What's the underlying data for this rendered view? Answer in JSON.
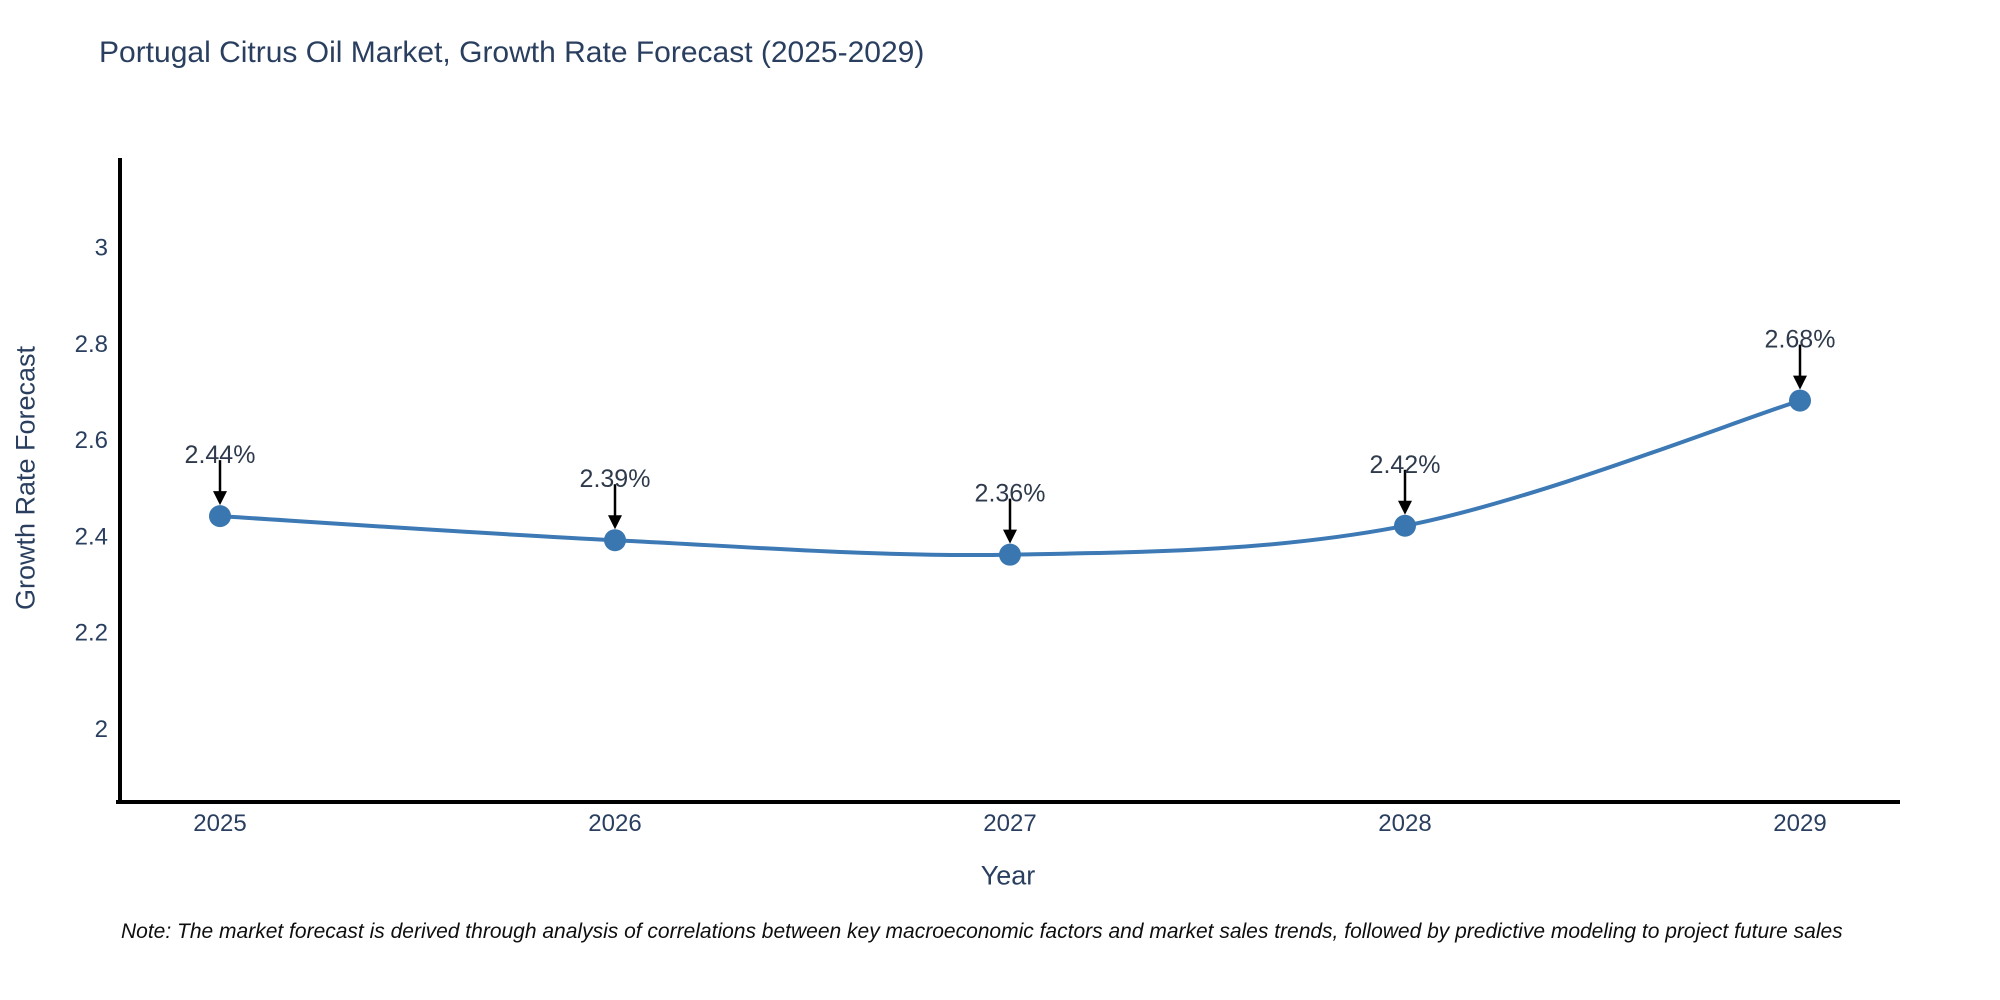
{
  "chart_data": {
    "type": "line",
    "title": "Portugal Citrus Oil Market, Growth Rate Forecast (2025-2029)",
    "xlabel": "Year",
    "ylabel": "Growth Rate Forecast",
    "categories": [
      "2025",
      "2026",
      "2027",
      "2028",
      "2029"
    ],
    "series": [
      {
        "name": "Growth Rate Forecast",
        "values": [
          2.44,
          2.39,
          2.36,
          2.42,
          2.68
        ],
        "point_labels": [
          "2.44%",
          "2.39%",
          "2.36%",
          "2.42%",
          "2.68%"
        ]
      }
    ],
    "yticks": [
      {
        "label": "3",
        "value": 3.0
      },
      {
        "label": "2.8",
        "value": 2.8
      },
      {
        "label": "2.6",
        "value": 2.6
      },
      {
        "label": "2.4",
        "value": 2.4
      },
      {
        "label": "2.2",
        "value": 2.2
      },
      {
        "label": "2",
        "value": 2.0
      }
    ],
    "ylim": [
      1.85,
      3.18
    ],
    "grid": false,
    "legend": "none",
    "line_style": "spline",
    "marker": "circle",
    "annotation_arrows": "black-down-arrow",
    "colors": {
      "line": "#3c79b5",
      "marker": "#3a76af",
      "axis": "#000000",
      "text": "#2a3f5f",
      "annotation_text": "#2f3b4c",
      "arrow": "#000000",
      "note_text": "#0e0e0e",
      "background": "#ffffff"
    },
    "note": "Note: The market forecast is derived through analysis of correlations between key macroeconomic factors and market sales trends, followed by predictive modeling to project future sales"
  }
}
